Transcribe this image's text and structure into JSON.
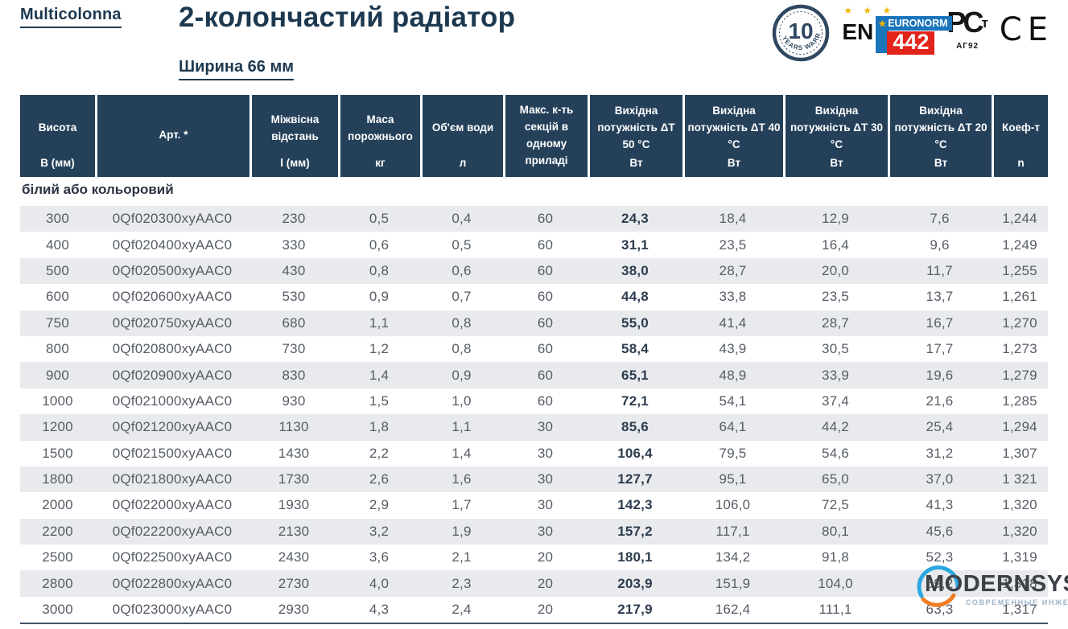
{
  "brand": {
    "logo": "Multicolonna"
  },
  "header": {
    "title": "2-колончастий радіатор",
    "subtitle": "Ширина 66 мм"
  },
  "badges": {
    "warranty": {
      "number": "10",
      "text": "YEARS WARRANTY"
    },
    "euronorm": {
      "stars": "★ ★ ★",
      "en": "EN",
      "star": "★",
      "label": "EURONORM",
      "number": "442"
    },
    "rostest": {
      "mark": "РС",
      "t": "т",
      "code": "АГ92"
    },
    "ce": "CE"
  },
  "table": {
    "section_label": "білий або кольоровий",
    "columns": [
      {
        "title": "Висота",
        "unit": "В (мм)"
      },
      {
        "title": "Арт. *",
        "unit": ""
      },
      {
        "title": "Міжвісна відстань",
        "unit": "l (мм)"
      },
      {
        "title": "Маса порожнього",
        "unit": "кг"
      },
      {
        "title": "Об'єм води",
        "unit": "л"
      },
      {
        "title": "Макс. к-ть секцій в одному приладі",
        "unit": ""
      },
      {
        "title": "Вихідна потужність ΔТ 50 °С",
        "unit": "Вт"
      },
      {
        "title": "Вихідна потужність ΔТ 40 °С",
        "unit": "Вт"
      },
      {
        "title": "Вихідна потужність ΔТ 30 °С",
        "unit": "Вт"
      },
      {
        "title": "Вихідна потужність ΔТ 20 °С",
        "unit": "Вт"
      },
      {
        "title": "Коеф-т",
        "unit": "n"
      }
    ],
    "rows": [
      [
        "300",
        "0Qf020300xyAAC0",
        "230",
        "0,5",
        "0,4",
        "60",
        "24,3",
        "18,4",
        "12,9",
        "7,6",
        "1,244"
      ],
      [
        "400",
        "0Qf020400xyAAC0",
        "330",
        "0,6",
        "0,5",
        "60",
        "31,1",
        "23,5",
        "16,4",
        "9,6",
        "1,249"
      ],
      [
        "500",
        "0Qf020500xyAAC0",
        "430",
        "0,8",
        "0,6",
        "60",
        "38,0",
        "28,7",
        "20,0",
        "11,7",
        "1,255"
      ],
      [
        "600",
        "0Qf020600xyAAC0",
        "530",
        "0,9",
        "0,7",
        "60",
        "44,8",
        "33,8",
        "23,5",
        "13,7",
        "1,261"
      ],
      [
        "750",
        "0Qf020750xyAAC0",
        "680",
        "1,1",
        "0,8",
        "60",
        "55,0",
        "41,4",
        "28,7",
        "16,7",
        "1,270"
      ],
      [
        "800",
        "0Qf020800xyAAC0",
        "730",
        "1,2",
        "0,8",
        "60",
        "58,4",
        "43,9",
        "30,5",
        "17,7",
        "1,273"
      ],
      [
        "900",
        "0Qf020900xyAAC0",
        "830",
        "1,4",
        "0,9",
        "60",
        "65,1",
        "48,9",
        "33,9",
        "19,6",
        "1,279"
      ],
      [
        "1000",
        "0Qf021000xyAAC0",
        "930",
        "1,5",
        "1,0",
        "60",
        "72,1",
        "54,1",
        "37,4",
        "21,6",
        "1,285"
      ],
      [
        "1200",
        "0Qf021200xyAAC0",
        "1130",
        "1,8",
        "1,1",
        "30",
        "85,6",
        "64,1",
        "44,2",
        "25,4",
        "1,294"
      ],
      [
        "1500",
        "0Qf021500xyAAC0",
        "1430",
        "2,2",
        "1,4",
        "30",
        "106,4",
        "79,5",
        "54,6",
        "31,2",
        "1,307"
      ],
      [
        "1800",
        "0Qf021800xyAAC0",
        "1730",
        "2,6",
        "1,6",
        "30",
        "127,7",
        "95,1",
        "65,0",
        "37,0",
        "1 321"
      ],
      [
        "2000",
        "0Qf022000xyAAC0",
        "1930",
        "2,9",
        "1,7",
        "30",
        "142,3",
        "106,0",
        "72,5",
        "41,3",
        "1,320"
      ],
      [
        "2200",
        "0Qf022200xyAAC0",
        "2130",
        "3,2",
        "1,9",
        "30",
        "157,2",
        "117,1",
        "80,1",
        "45,6",
        "1,320"
      ],
      [
        "2500",
        "0Qf022500xyAAC0",
        "2430",
        "3,6",
        "2,1",
        "20",
        "180,1",
        "134,2",
        "91,8",
        "52,3",
        "1,319"
      ],
      [
        "2800",
        "0Qf022800xyAAC0",
        "2730",
        "4,0",
        "2,3",
        "20",
        "203,9",
        "151,9",
        "104,0",
        "59,2",
        "1,318"
      ],
      [
        "3000",
        "0Qf023000xyAAC0",
        "2930",
        "4,3",
        "2,4",
        "20",
        "217,9",
        "162,4",
        "111,1",
        "63,3",
        "1,317"
      ]
    ]
  },
  "watermark": {
    "name": "MODERNSYS",
    "tagline": "СОВРЕМЕННЫЕ ИНЖЕНЕРНЫЕ СИСТЕМЫ"
  },
  "colors": {
    "header_bg": "#25415a",
    "row_alt": "#e8eaed",
    "text_gray": "#565c66",
    "strong_navy": "#2e3d4f",
    "title_navy": "#1d3950",
    "euro_blue": "#1b75bb",
    "euro_red": "#e2231a",
    "gold": "#f2b705",
    "wm_blue": "#2aa7e0",
    "wm_orange": "#ef7d24",
    "wm_gray": "#9db3c6"
  }
}
